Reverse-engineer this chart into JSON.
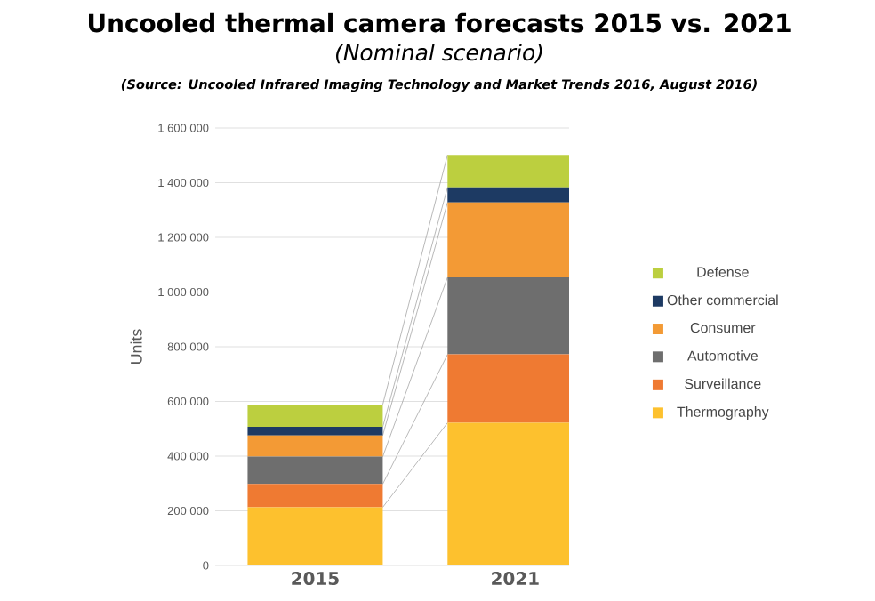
{
  "chart_data": {
    "type": "bar",
    "title": "Uncooled thermal camera forecasts 2015 vs. 2021",
    "subtitle": "(Nominal scenario)",
    "annotations": [
      "(Source: Uncooled Infrared Imaging Technology and Market Trends 2016, August 2016)"
    ],
    "ylabel": "Units",
    "categories": [
      "2015",
      "2021"
    ],
    "stacked": true,
    "series": [
      {
        "name": "Thermography",
        "color": "#fdc12e",
        "values": [
          213000,
          522000
        ]
      },
      {
        "name": "Surveillance",
        "color": "#ef7a32",
        "values": [
          85000,
          250000
        ]
      },
      {
        "name": "Automotive",
        "color": "#6e6e6e",
        "values": [
          100000,
          282000
        ]
      },
      {
        "name": "Consumer",
        "color": "#f39a35",
        "values": [
          78000,
          274000
        ]
      },
      {
        "name": "Other commercial",
        "color": "#1d3a63",
        "values": [
          31000,
          55000
        ]
      },
      {
        "name": "Defense",
        "color": "#bccf3f",
        "values": [
          82000,
          119000
        ]
      }
    ],
    "ylim": [
      0,
      1600000
    ],
    "yticks": [
      0,
      {
        "value": 200000,
        "label": "200 000"
      },
      {
        "value": 400000,
        "label": "400 000"
      },
      {
        "value": 600000,
        "label": "600 000"
      },
      {
        "value": 800000,
        "label": "800 000"
      },
      {
        "value": 1000000,
        "label": "1 000 000"
      },
      {
        "value": 1200000,
        "label": "1 200 000"
      },
      {
        "value": 1400000,
        "label": "1 400 000"
      },
      {
        "value": 1600000,
        "label": "1 600 000"
      }
    ],
    "grid": "y",
    "legend": "right"
  }
}
